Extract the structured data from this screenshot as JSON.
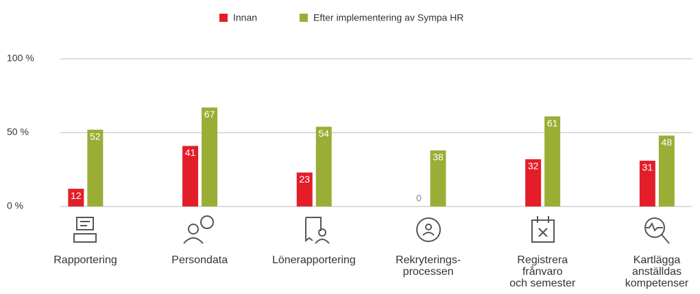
{
  "chart_data": {
    "type": "bar",
    "categories": [
      "Rapportering",
      "Persondata",
      "Lönerapportering",
      "Rekryterings-\nprocessen",
      "Registrera\nfrånvaro\noch semester",
      "Kartlägga\nanställdas\nkompetenser"
    ],
    "series": [
      {
        "name": "Innan",
        "color": "#e31e2a",
        "values": [
          12,
          41,
          23,
          0,
          32,
          31
        ]
      },
      {
        "name": "Efter implementering av Sympa HR",
        "color": "#9aae36",
        "values": [
          52,
          67,
          54,
          38,
          61,
          48
        ]
      }
    ],
    "ylim": [
      0,
      100
    ],
    "yticks": [
      {
        "value": 0,
        "label": "0 %"
      },
      {
        "value": 50,
        "label": "50 %"
      },
      {
        "value": 100,
        "label": "100 %"
      }
    ],
    "grid": true,
    "legend": "top"
  }
}
